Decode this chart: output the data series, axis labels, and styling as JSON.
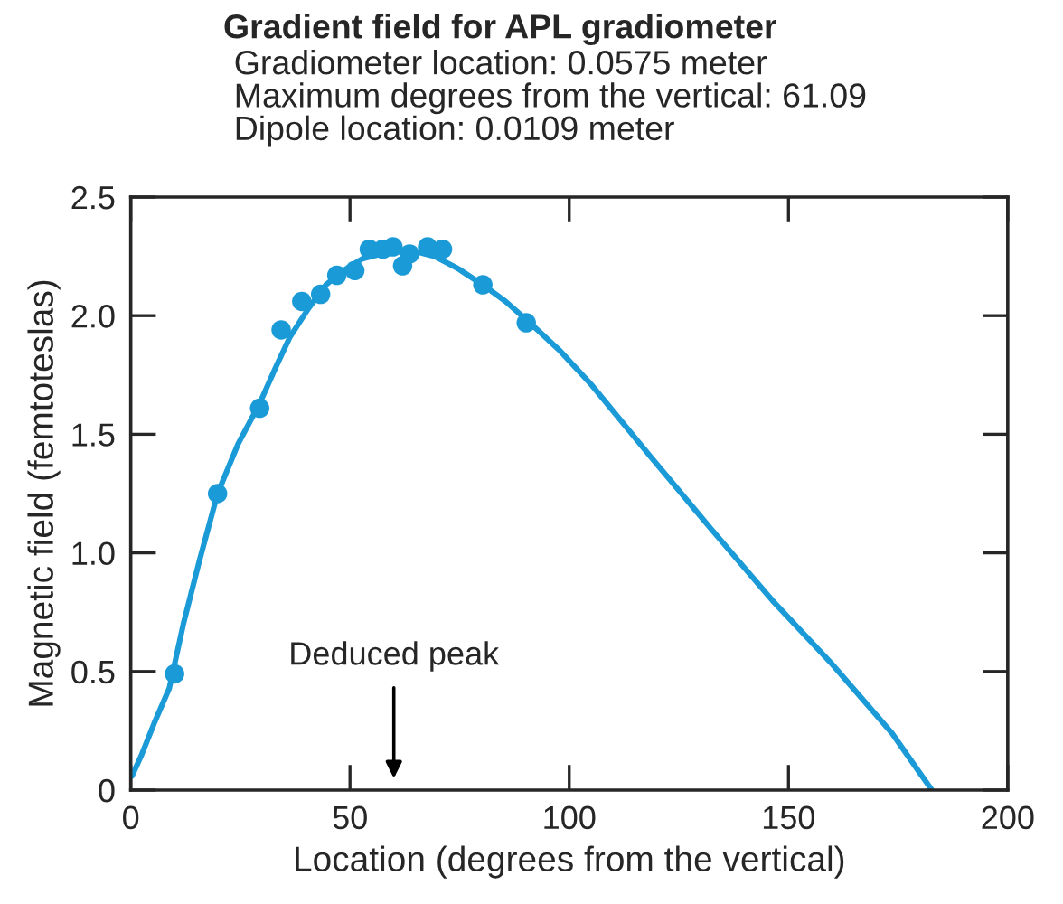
{
  "chart_data": {
    "type": "scatter",
    "title": "Gradient field for APL gradiometer",
    "subtitle": "Gradiometer location: 0.0575 meter\nMaximum degrees from the vertical: 61.09\nDipole location: 0.0109 meter",
    "xlabel": "Location (degrees from the vertical)",
    "ylabel": "Magnetic field (femtoteslas)",
    "series": [
      {
        "color": "#1a9ad6",
        "marker": "circle",
        "x": [
          10,
          19.8,
          29.4,
          34.3,
          39,
          43.3,
          47,
          51.1,
          54.4,
          57.5,
          59.8,
          62,
          63.6,
          67.7,
          71.1,
          80.3,
          90.2
        ],
        "values": [
          0.49,
          1.25,
          1.61,
          1.94,
          2.06,
          2.09,
          2.17,
          2.19,
          2.28,
          2.28,
          2.29,
          2.21,
          2.26,
          2.29,
          2.28,
          2.13,
          1.97
        ]
      },
      {
        "type": "line",
        "color": "#1a9ad6",
        "marker": "none",
        "x": [
          0.3,
          2.5,
          5.3,
          8.8,
          12,
          15.7,
          19.8,
          24.5,
          29.4,
          33,
          36.3,
          40.5,
          44.5,
          48.5,
          52.8,
          57,
          61,
          65,
          69.3,
          74.5,
          80.3,
          85.5,
          91,
          98,
          105,
          118.8,
          132.4,
          146.3,
          160,
          173.6,
          182.7
        ],
        "values": [
          0.06,
          0.15,
          0.28,
          0.43,
          0.7,
          0.97,
          1.25,
          1.46,
          1.63,
          1.78,
          1.91,
          2.03,
          2.13,
          2.19,
          2.24,
          2.26,
          2.27,
          2.27,
          2.25,
          2.2,
          2.13,
          2.06,
          1.97,
          1.85,
          1.71,
          1.4,
          1.1,
          0.8,
          0.53,
          0.24,
          0
        ]
      }
    ],
    "annotations": [
      "Deduced peak"
    ],
    "xlim": [
      0,
      200
    ],
    "xticks": [
      0,
      50,
      100,
      150,
      200
    ],
    "ylim": [
      0,
      2.5
    ],
    "yticks": [
      0,
      0.5,
      {
        "value": 1,
        "label": "1.0"
      },
      1.5,
      {
        "value": 2,
        "label": "2.0"
      },
      2.5
    ],
    "grid": false,
    "legend": false
  }
}
